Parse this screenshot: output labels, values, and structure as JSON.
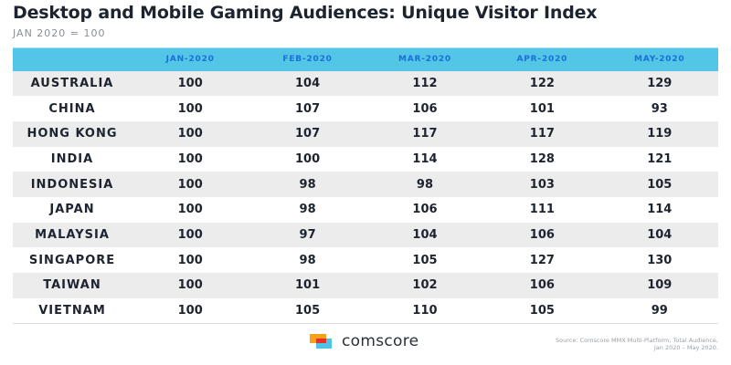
{
  "header": {
    "title": "Desktop and Mobile Gaming Audiences: Unique Visitor Index",
    "subtitle": "JAN 2020 = 100"
  },
  "colors": {
    "header_bg": "#53c6e8",
    "header_text": "#1a6fd8",
    "negative": "#e8302a",
    "text": "#1d2430",
    "row_alt": "#ececec"
  },
  "chart_data": {
    "type": "table",
    "title": "Desktop and Mobile Gaming Audiences: Unique Visitor Index",
    "subtitle": "JAN 2020 = 100",
    "columns": [
      "",
      "JAN-2020",
      "FEB-2020",
      "MAR-2020",
      "APR-2020",
      "MAY-2020"
    ],
    "rows": [
      {
        "country": "AUSTRALIA",
        "values": [
          100,
          104,
          112,
          122,
          129
        ]
      },
      {
        "country": "CHINA",
        "values": [
          100,
          107,
          106,
          101,
          93
        ]
      },
      {
        "country": "HONG KONG",
        "values": [
          100,
          107,
          117,
          117,
          119
        ]
      },
      {
        "country": "INDIA",
        "values": [
          100,
          100,
          114,
          128,
          121
        ]
      },
      {
        "country": "INDONESIA",
        "values": [
          100,
          98,
          98,
          103,
          105
        ]
      },
      {
        "country": "JAPAN",
        "values": [
          100,
          98,
          106,
          111,
          114
        ]
      },
      {
        "country": "MALAYSIA",
        "values": [
          100,
          97,
          104,
          106,
          104
        ]
      },
      {
        "country": "SINGAPORE",
        "values": [
          100,
          98,
          105,
          127,
          130
        ]
      },
      {
        "country": "TAIWAN",
        "values": [
          100,
          101,
          102,
          106,
          109
        ]
      },
      {
        "country": "VIETNAM",
        "values": [
          100,
          105,
          110,
          105,
          99
        ]
      }
    ],
    "highlight_rule": "values below 100 shown in red"
  },
  "footer": {
    "brand": "comscore",
    "logo_icon": "comscore-logo-icon",
    "source_line1": "Source: Comscore MMX Multi-Platform, Total Audience,",
    "source_line2": "Jan 2020 – May 2020."
  }
}
